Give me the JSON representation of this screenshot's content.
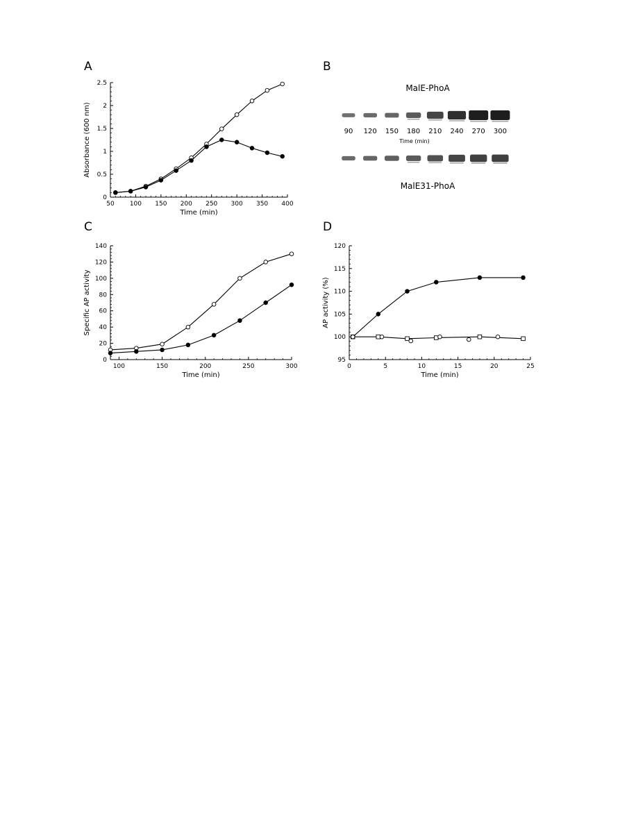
{
  "panels": {
    "A": {
      "letter": "A"
    },
    "B": {
      "letter": "B",
      "title_top": "MalE-PhoA",
      "title_bottom": "MalE31-PhoA",
      "xlabel": "Time (min)"
    },
    "C": {
      "letter": "C"
    },
    "D": {
      "letter": "D"
    }
  },
  "chart_data": [
    {
      "id": "A",
      "type": "line",
      "xlabel": "Time (min)",
      "ylabel": "Absorbance (600 nm)",
      "xlim": [
        50,
        400
      ],
      "ylim": [
        0,
        2.5
      ],
      "xticks": [
        50,
        100,
        150,
        200,
        250,
        300,
        350,
        400
      ],
      "yticks": [
        0,
        0.5,
        1,
        1.5,
        2,
        2.5
      ],
      "ytick_labels": [
        "0",
        "0.5",
        "1",
        "1.5",
        "2",
        "2.5"
      ],
      "series": [
        {
          "marker": "open-circle",
          "x": [
            60,
            90,
            120,
            150,
            180,
            210,
            240,
            270,
            300,
            330,
            360,
            390
          ],
          "y": [
            0.1,
            0.13,
            0.24,
            0.4,
            0.62,
            0.86,
            1.16,
            1.49,
            1.8,
            2.1,
            2.33,
            2.47
          ]
        },
        {
          "marker": "filled-circle",
          "x": [
            60,
            90,
            120,
            150,
            180,
            210,
            240,
            270,
            300,
            330,
            360,
            390
          ],
          "y": [
            0.1,
            0.13,
            0.22,
            0.37,
            0.58,
            0.8,
            1.1,
            1.25,
            1.2,
            1.07,
            0.97,
            0.89
          ]
        }
      ]
    },
    {
      "id": "B",
      "type": "gel",
      "lanes": [
        "90",
        "120",
        "150",
        "180",
        "210",
        "240",
        "270",
        "300"
      ],
      "top_intensity": [
        0.25,
        0.3,
        0.35,
        0.45,
        0.65,
        0.85,
        1.0,
        1.0
      ],
      "bottom_intensity": [
        0.3,
        0.35,
        0.4,
        0.45,
        0.55,
        0.65,
        0.7,
        0.7
      ]
    },
    {
      "id": "C",
      "type": "line",
      "xlabel": "Time (min)",
      "ylabel": "Specific AP activity",
      "xlim": [
        90,
        300
      ],
      "ylim": [
        0,
        140
      ],
      "xticks": [
        100,
        150,
        200,
        250,
        300
      ],
      "yticks": [
        0,
        20,
        40,
        60,
        80,
        100,
        120,
        140
      ],
      "series": [
        {
          "marker": "open-circle",
          "x": [
            90,
            120,
            150,
            180,
            210,
            240,
            270,
            300
          ],
          "y": [
            12,
            14,
            19,
            40,
            68,
            100,
            120,
            130
          ]
        },
        {
          "marker": "filled-circle",
          "x": [
            90,
            120,
            150,
            180,
            210,
            240,
            270,
            300
          ],
          "y": [
            8,
            10,
            12,
            18,
            30,
            48,
            70,
            92
          ]
        }
      ]
    },
    {
      "id": "D",
      "type": "line",
      "xlabel": "Time (min)",
      "ylabel": "AP activity (%)",
      "xlim": [
        0,
        25
      ],
      "ylim": [
        95,
        120
      ],
      "xticks": [
        0,
        5,
        10,
        15,
        20,
        25
      ],
      "yticks": [
        95,
        100,
        105,
        110,
        115,
        120
      ],
      "series": [
        {
          "marker": "filled-circle",
          "line": true,
          "x": [
            0.5,
            4,
            8,
            12,
            18,
            24
          ],
          "y": [
            100,
            105,
            110,
            112,
            113,
            113
          ]
        },
        {
          "marker": "open-square",
          "line": true,
          "x": [
            0.5,
            4,
            8,
            12,
            18,
            24
          ],
          "y": [
            100,
            100,
            99.6,
            99.8,
            100,
            99.6
          ]
        },
        {
          "marker": "open-circle",
          "line": false,
          "x": [
            0.5,
            4.5,
            8.5,
            12.5,
            16.5,
            20.5
          ],
          "y": [
            100,
            100,
            99.1,
            100,
            99.4,
            100
          ]
        }
      ]
    }
  ]
}
